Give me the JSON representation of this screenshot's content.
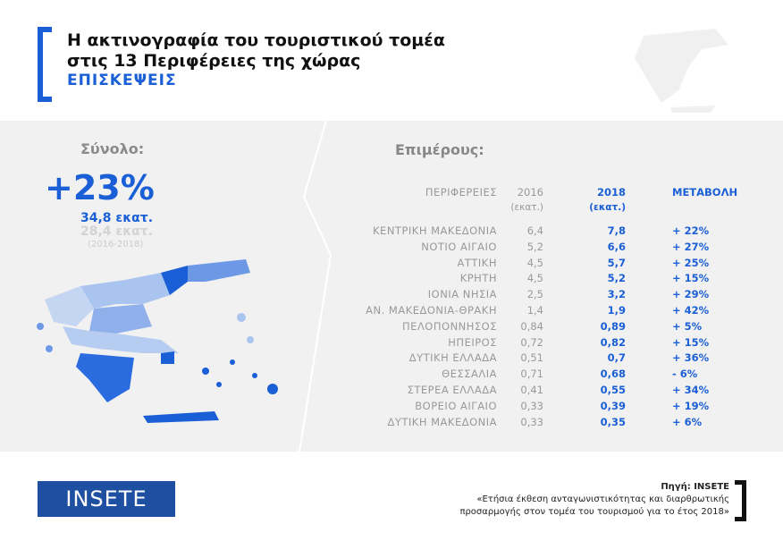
{
  "header": {
    "title_line1": "Η ακτινογραφία του τουριστικού τομέα",
    "title_line2": "στις 13 Περιφέρειες της χώρας",
    "subtitle": "ΕΠΙΣΚΕΨΕΙΣ"
  },
  "total": {
    "label": "Σύνολο:",
    "change": "+23%",
    "value_2018": "34,8 εκατ.",
    "value_2016": "28,4 εκατ.",
    "period": "(2016-2018)"
  },
  "details": {
    "label": "Επιμέρους:",
    "headers": {
      "region": "ΠΕΡΙΦΕΡΕΙΕΣ",
      "y2016": "2016",
      "y2016_unit": "(εκατ.)",
      "y2018": "2018",
      "y2018_unit": "(εκατ.)",
      "change": "ΜΕΤΑΒΟΛΗ"
    },
    "rows": [
      {
        "region": "ΚΕΝΤΡΙΚΗ ΜΑΚΕΔΟΝΙΑ",
        "y2016": "6,4",
        "y2018": "7,8",
        "change": "+ 22%"
      },
      {
        "region": "ΝΟΤΙΟ ΑΙΓΑΙΟ",
        "y2016": "5,2",
        "y2018": "6,6",
        "change": "+ 27%"
      },
      {
        "region": "ΑΤΤΙΚΗ",
        "y2016": "4,5",
        "y2018": "5,7",
        "change": "+ 25%"
      },
      {
        "region": "ΚΡΗΤΗ",
        "y2016": "4,5",
        "y2018": "5,2",
        "change": "+ 15%"
      },
      {
        "region": "ΙΟΝΙΑ ΝΗΣΙΑ",
        "y2016": "2,5",
        "y2018": "3,2",
        "change": "+ 29%"
      },
      {
        "region": "ΑΝ. ΜΑΚΕΔΟΝΙΑ-ΘΡΑΚΗ",
        "y2016": "1,4",
        "y2018": "1,9",
        "change": "+ 42%"
      },
      {
        "region": "ΠΕΛΟΠΟΝΝΗΣΟΣ",
        "y2016": "0,84",
        "y2018": "0,89",
        "change": "+ 5%"
      },
      {
        "region": "ΗΠΕΙΡΟΣ",
        "y2016": "0,72",
        "y2018": "0,82",
        "change": "+ 15%"
      },
      {
        "region": "ΔΥΤΙΚΗ ΕΛΛΑΔΑ",
        "y2016": "0,51",
        "y2018": "0,7",
        "change": "+ 36%"
      },
      {
        "region": "ΘΕΣΣΑΛΙΑ",
        "y2016": "0,71",
        "y2018": "0,68",
        "change": "- 6%"
      },
      {
        "region": "ΣΤΕΡΕΑ ΕΛΛΑΔΑ",
        "y2016": "0,41",
        "y2018": "0,55",
        "change": "+ 34%"
      },
      {
        "region": "ΒΟΡΕΙΟ ΑΙΓΑΙΟ",
        "y2016": "0,33",
        "y2018": "0,39",
        "change": "+ 19%"
      },
      {
        "region": "ΔΥΤΙΚΗ ΜΑΚΕΔΟΝΙΑ",
        "y2016": "0,33",
        "y2018": "0,35",
        "change": "+ 6%"
      }
    ]
  },
  "footer": {
    "logo": "INSETE",
    "source": "Πηγή: INSETE",
    "report_line1": "«Ετήσια έκθεση ανταγωνιστικότητας και διαρθρωτικής",
    "report_line2": "προσαρμογής στον τομέα του τουρισμού για το έτος 2018»"
  },
  "colors": {
    "accent": "#1a5fd6",
    "logo_bg": "#1f4fa0"
  }
}
